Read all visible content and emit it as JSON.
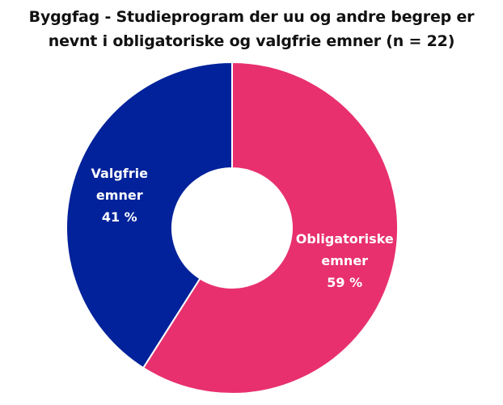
{
  "chart_data": {
    "type": "pie",
    "title_lines": [
      "Byggfag - Studieprogram der uu og andre begrep er",
      "nevnt i obligatoriske og valgfrie emner (n = 22)"
    ],
    "slices": [
      {
        "label_lines": [
          "Obligatoriske",
          "emner"
        ],
        "value_label": "59 %",
        "value": 59,
        "color": "#E8306F"
      },
      {
        "label_lines": [
          "Valgfrie",
          "emner"
        ],
        "value_label": "41 %",
        "value": 41,
        "color": "#01229A"
      }
    ],
    "donut": true,
    "legend": "none"
  }
}
